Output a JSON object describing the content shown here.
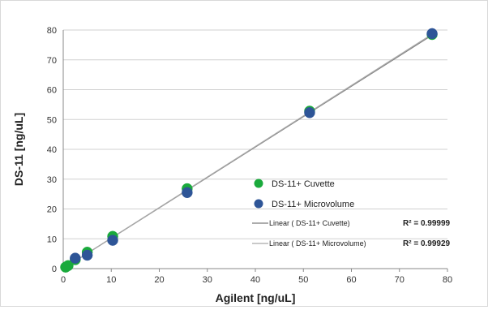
{
  "chart_data": {
    "type": "scatter",
    "title": "",
    "xlabel": "Agilent  [ng/uL]",
    "ylabel": "DS-11  [ng/uL]",
    "xlim": [
      0,
      80
    ],
    "ylim": [
      0,
      80
    ],
    "xticks": [
      "0",
      "10",
      "20",
      "30",
      "40",
      "50",
      "60",
      "70",
      "80"
    ],
    "yticks": [
      "0",
      "10",
      "20",
      "30",
      "40",
      "50",
      "60",
      "70",
      "80"
    ],
    "grid": true,
    "legend_position": "right",
    "series": [
      {
        "name": "DS-11+ Cuvette",
        "color": "#1aaa3c",
        "points": [
          {
            "x": 0.5,
            "y": 0.5
          },
          {
            "x": 1.0,
            "y": 1.0
          },
          {
            "x": 2.5,
            "y": 3.0
          },
          {
            "x": 5.0,
            "y": 5.5
          },
          {
            "x": 10.3,
            "y": 10.8
          },
          {
            "x": 25.8,
            "y": 26.8
          },
          {
            "x": 51.3,
            "y": 52.8
          },
          {
            "x": 76.8,
            "y": 78.5
          }
        ]
      },
      {
        "name": "DS-11+ Microvolume",
        "color": "#2e5597",
        "points": [
          {
            "x": 2.5,
            "y": 3.5
          },
          {
            "x": 5.0,
            "y": 4.5
          },
          {
            "x": 10.3,
            "y": 9.5
          },
          {
            "x": 25.8,
            "y": 25.5
          },
          {
            "x": 51.3,
            "y": 52.3
          },
          {
            "x": 76.8,
            "y": 78.8
          }
        ]
      }
    ],
    "trendlines": [
      {
        "label": "Linear ( DS-11+ Cuvette)",
        "r2_label": "R² = 0.99999",
        "color": "#7a7a7a",
        "from": {
          "x": 0,
          "y": 0
        },
        "to": {
          "x": 77,
          "y": 78.5
        }
      },
      {
        "label": "Linear ( DS-11+ Microvolume)",
        "r2_label": "R² = 0.99929",
        "color": "#a9a9a9",
        "from": {
          "x": 0,
          "y": 0
        },
        "to": {
          "x": 77,
          "y": 78.8
        }
      }
    ]
  }
}
